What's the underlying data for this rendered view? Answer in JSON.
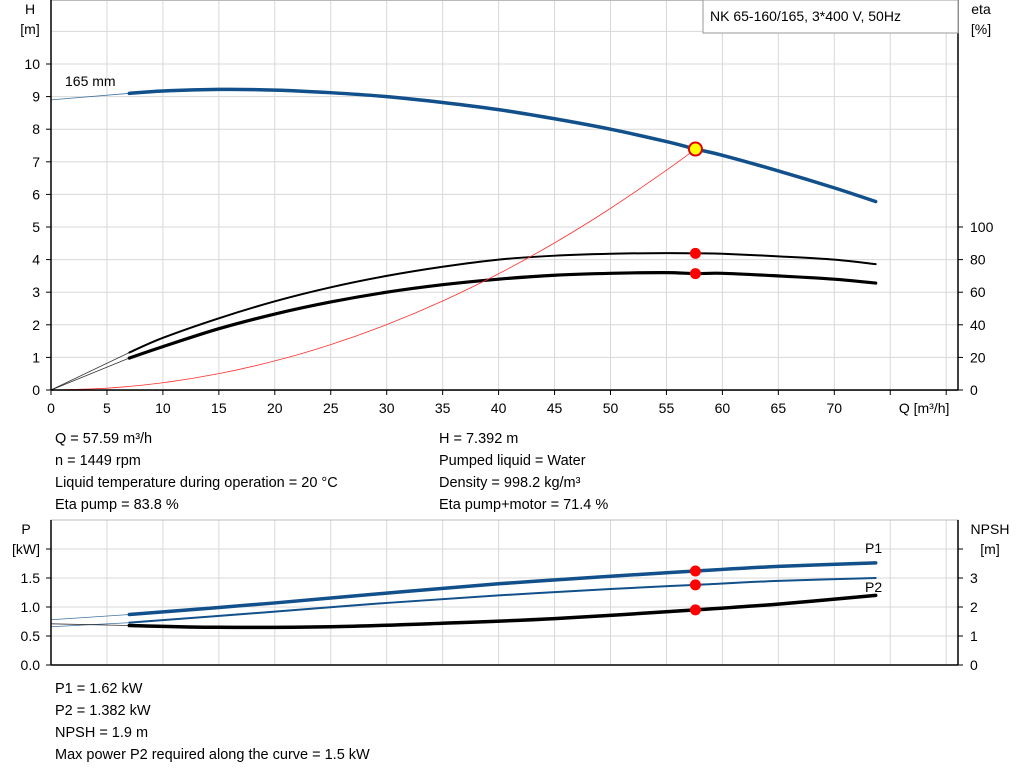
{
  "chart_data": [
    {
      "type": "line",
      "title": "NK 65-160/165, 3*400 V, 50Hz",
      "xlabel": "Q [m³/h]",
      "ylabel_left": [
        "H",
        "[m]"
      ],
      "ylabel_right": [
        "eta",
        "[%]"
      ],
      "xlim": [
        0,
        81
      ],
      "ylim_left": [
        0,
        12
      ],
      "ylim_right_eta": [
        0,
        240
      ],
      "x_ticks": [
        "0",
        "5",
        "10",
        "15",
        "20",
        "25",
        "30",
        "35",
        "40",
        "45",
        "50",
        "55",
        "60",
        "65",
        "70"
      ],
      "y_ticks_left": [
        "0",
        "1",
        "2",
        "3",
        "4",
        "5",
        "6",
        "7",
        "8",
        "9",
        "10"
      ],
      "y_ticks_right": [
        "0",
        "20",
        "40",
        "60",
        "80",
        "100"
      ],
      "grid": true,
      "curve_label": "165 mm",
      "series": [
        {
          "key": "head",
          "axis": "H",
          "color": "#12508b",
          "x": [
            7,
            10,
            15,
            20,
            25,
            30,
            35,
            40,
            45,
            50,
            55,
            57.59,
            60,
            65,
            70,
            73.7
          ],
          "y": [
            9.1,
            9.17,
            9.22,
            9.2,
            9.12,
            9.0,
            8.82,
            8.6,
            8.32,
            8.0,
            7.62,
            7.392,
            7.2,
            6.72,
            6.2,
            5.78
          ],
          "extrapolation": {
            "x": [
              0,
              7
            ],
            "y": [
              8.9,
              9.1
            ]
          }
        },
        {
          "key": "eta_pump",
          "axis": "eta",
          "color": "#000000",
          "x": [
            7,
            10,
            15,
            20,
            25,
            30,
            35,
            40,
            45,
            50,
            55,
            57.59,
            60,
            65,
            70,
            73.7
          ],
          "y": [
            23,
            32,
            44,
            54.4,
            63,
            70,
            75.6,
            80,
            82.4,
            83.6,
            84,
            83.8,
            83.6,
            82,
            80,
            77.2
          ],
          "extrapolation": {
            "x": [
              0,
              7
            ],
            "y": [
              0,
              23
            ]
          }
        },
        {
          "key": "eta_pump_motor",
          "axis": "eta",
          "color": "#000000",
          "x": [
            7,
            10,
            15,
            20,
            25,
            30,
            35,
            40,
            45,
            50,
            55,
            57.59,
            60,
            65,
            70,
            73.7
          ],
          "y": [
            19.6,
            26.6,
            37.6,
            46.6,
            54,
            60,
            64.6,
            68,
            70.4,
            71.6,
            72,
            71.4,
            71.6,
            70,
            68,
            65.6
          ],
          "extrapolation": {
            "x": [
              0,
              7
            ],
            "y": [
              0,
              19.6
            ]
          }
        },
        {
          "key": "system_curve",
          "axis": "H",
          "color": "#ff3030",
          "x": [
            0,
            5,
            10,
            15,
            20,
            25,
            30,
            35,
            40,
            45,
            50,
            55,
            57.59
          ],
          "y": [
            0,
            0.056,
            0.223,
            0.501,
            0.892,
            1.393,
            2.006,
            2.73,
            3.566,
            4.513,
            5.572,
            6.742,
            7.392
          ]
        }
      ],
      "duty_points": [
        {
          "series": "head",
          "x": 57.59,
          "y": 7.392,
          "color": "#ffff00",
          "stroke": "#e00000"
        },
        {
          "series": "eta_pump",
          "x": 57.59,
          "y": 83.8,
          "color": "#ff0000"
        },
        {
          "series": "eta_pump_motor",
          "x": 57.59,
          "y": 71.4,
          "color": "#ff0000"
        }
      ]
    },
    {
      "type": "line",
      "ylabel_left": [
        "P",
        "[kW]"
      ],
      "ylabel_right": [
        "NPSH",
        "[m]"
      ],
      "xlim": [
        0,
        81
      ],
      "ylim_left": [
        0,
        2.5
      ],
      "ylim_right": [
        0,
        5
      ],
      "y_ticks_left": [
        "0.0",
        "0.5",
        "1.0",
        "1.5"
      ],
      "y_ticks_right": [
        "0",
        "1",
        "2",
        "3"
      ],
      "grid": true,
      "series": [
        {
          "key": "P1",
          "name": "P1",
          "axis": "P",
          "color": "#12508b",
          "x": [
            7,
            20,
            30,
            40,
            50,
            57.59,
            65,
            73.7
          ],
          "y": [
            0.87,
            1.07,
            1.24,
            1.4,
            1.53,
            1.62,
            1.7,
            1.76
          ],
          "extrapolation": {
            "x": [
              0,
              7
            ],
            "y": [
              0.78,
              0.87
            ]
          }
        },
        {
          "key": "P2",
          "name": "P2",
          "axis": "P",
          "color": "#12508b",
          "x": [
            7,
            20,
            30,
            40,
            50,
            57.59,
            65,
            73.7
          ],
          "y": [
            0.73,
            0.92,
            1.07,
            1.2,
            1.31,
            1.382,
            1.45,
            1.5
          ],
          "extrapolation": {
            "x": [
              0,
              7
            ],
            "y": [
              0.66,
              0.73
            ]
          }
        },
        {
          "key": "NPSH",
          "axis": "NPSH",
          "color": "#000000",
          "x": [
            7,
            15,
            25,
            35,
            45,
            57.59,
            65,
            73.7
          ],
          "y": [
            1.36,
            1.3,
            1.32,
            1.44,
            1.6,
            1.9,
            2.1,
            2.4
          ],
          "extrapolation": {
            "x": [
              0,
              7
            ],
            "y": [
              1.42,
              1.36
            ]
          }
        }
      ],
      "duty_points": [
        {
          "series": "P1",
          "x": 57.59,
          "y": 1.62,
          "color": "#ff0000"
        },
        {
          "series": "P2",
          "x": 57.59,
          "y": 1.382,
          "color": "#ff0000"
        },
        {
          "series": "NPSH",
          "x": 57.59,
          "y": 1.9,
          "color": "#ff0000"
        }
      ]
    }
  ],
  "info_top_left": [
    "Q = 57.59 m³/h",
    "n = 1449 rpm",
    "Liquid temperature during operation = 20 °C",
    "Eta pump = 83.8 %"
  ],
  "info_top_right": [
    "H = 7.392 m",
    "Pumped liquid = Water",
    "Density = 998.2 kg/m³",
    "Eta pump+motor = 71.4 %"
  ],
  "info_bottom": [
    "P1 = 1.62 kW",
    "P2 = 1.382 kW",
    "NPSH = 1.9 m",
    "Max power P2 required along the curve = 1.5 kW"
  ]
}
